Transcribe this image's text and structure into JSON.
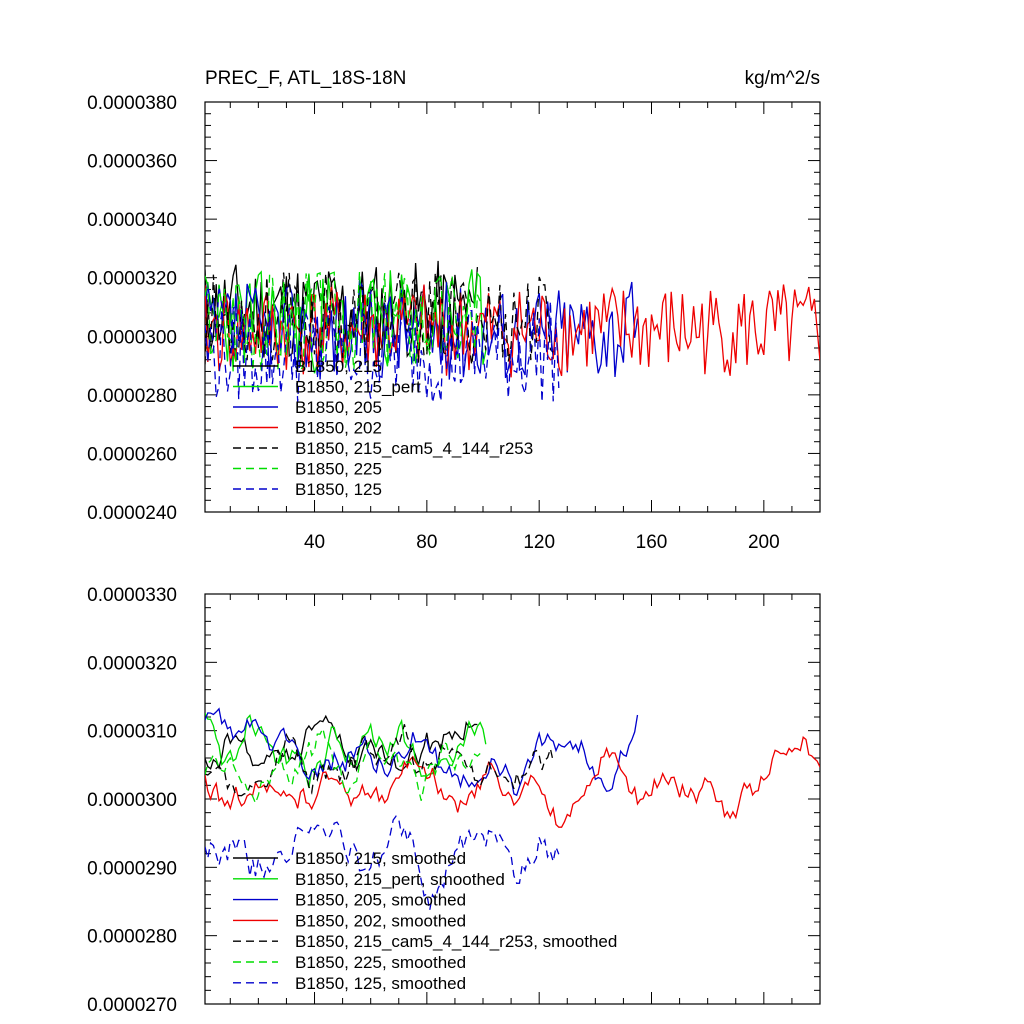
{
  "chart_data": [
    {
      "type": "line",
      "title": "PREC_F, ATL_18S-18N",
      "units_label": "kg/m^2/s",
      "xlim": [
        1,
        220
      ],
      "ylim": [
        2.4e-05,
        3.8e-05
      ],
      "xticks": [
        40,
        80,
        120,
        160,
        200
      ],
      "xtick_labels": [
        "40",
        "80",
        "120",
        "160",
        "200"
      ],
      "yticks": [
        2.4e-05,
        2.6e-05,
        2.8e-05,
        3e-05,
        3.2e-05,
        3.4e-05,
        3.6e-05,
        3.8e-05
      ],
      "ytick_labels": [
        "0.0000240",
        "0.0000260",
        "0.0000280",
        "0.0000300",
        "0.0000320",
        "0.0000340",
        "0.0000360",
        "0.0000380"
      ],
      "series": [
        {
          "name": "B1850, 215",
          "color": "#000000",
          "dash": "solid",
          "length": 98,
          "base": 3.09e-05,
          "amp": 1.7e-06,
          "seed": 11
        },
        {
          "name": "B1850, 215_pert",
          "color": "#00dd00",
          "dash": "solid",
          "length": 101,
          "base": 3.05e-05,
          "amp": 1.8e-06,
          "seed": 23
        },
        {
          "name": "B1850, 205",
          "color": "#0000cc",
          "dash": "solid",
          "length": 155,
          "base": 3.02e-05,
          "amp": 1.7e-06,
          "seed": 37
        },
        {
          "name": "B1850, 202",
          "color": "#ee0000",
          "dash": "solid",
          "length": 220,
          "base": 3.02e-05,
          "amp": 1.6e-06,
          "seed": 41
        },
        {
          "name": "B1850, 215_cam5_4_144_r253",
          "color": "#000000",
          "dash": "dashed",
          "length": 125,
          "base": 3.06e-05,
          "amp": 1.6e-06,
          "seed": 53
        },
        {
          "name": "B1850, 225",
          "color": "#00dd00",
          "dash": "dashed",
          "length": 99,
          "base": 3.06e-05,
          "amp": 1.8e-06,
          "seed": 67
        },
        {
          "name": "B1850, 125",
          "color": "#0000cc",
          "dash": "dashed",
          "length": 127,
          "base": 2.95e-05,
          "amp": 1.8e-06,
          "seed": 79
        }
      ]
    },
    {
      "type": "line",
      "title": "",
      "xlim": [
        1,
        220
      ],
      "ylim": [
        2.7e-05,
        3.3e-05
      ],
      "xticks": [
        40,
        80,
        120,
        160,
        200
      ],
      "xtick_labels": [
        "",
        "",
        "",
        "",
        ""
      ],
      "yticks": [
        2.7e-05,
        2.8e-05,
        2.9e-05,
        3e-05,
        3.1e-05,
        3.2e-05,
        3.3e-05
      ],
      "ytick_labels": [
        "0.0000270",
        "0.0000280",
        "0.0000290",
        "0.0000300",
        "0.0000310",
        "0.0000320",
        "0.0000330"
      ],
      "series": [
        {
          "name": "B1850, 215, smoothed",
          "color": "#000000",
          "dash": "solid",
          "length": 98,
          "base": 3.07e-05,
          "amp": 6e-07,
          "seed": 11
        },
        {
          "name": "B1850, 215_pert, smoothed",
          "color": "#00dd00",
          "dash": "solid",
          "length": 101,
          "base": 3.06e-05,
          "amp": 7e-07,
          "seed": 23
        },
        {
          "name": "B1850, 205, smoothed",
          "color": "#0000cc",
          "dash": "solid",
          "length": 155,
          "base": 3.06e-05,
          "amp": 6e-07,
          "seed": 37
        },
        {
          "name": "B1850, 202, smoothed",
          "color": "#ee0000",
          "dash": "solid",
          "length": 220,
          "base": 3.01e-05,
          "amp": 6e-07,
          "seed": 41
        },
        {
          "name": "B1850, 215_cam5_4_144_r253, smoothed",
          "color": "#000000",
          "dash": "dashed",
          "length": 125,
          "base": 3.05e-05,
          "amp": 6e-07,
          "seed": 53
        },
        {
          "name": "B1850, 225, smoothed",
          "color": "#00dd00",
          "dash": "dashed",
          "length": 99,
          "base": 3.05e-05,
          "amp": 6e-07,
          "seed": 67
        },
        {
          "name": "B1850, 125, smoothed",
          "color": "#0000cc",
          "dash": "dashed",
          "length": 127,
          "base": 2.93e-05,
          "amp": 7e-07,
          "seed": 79
        }
      ]
    }
  ]
}
